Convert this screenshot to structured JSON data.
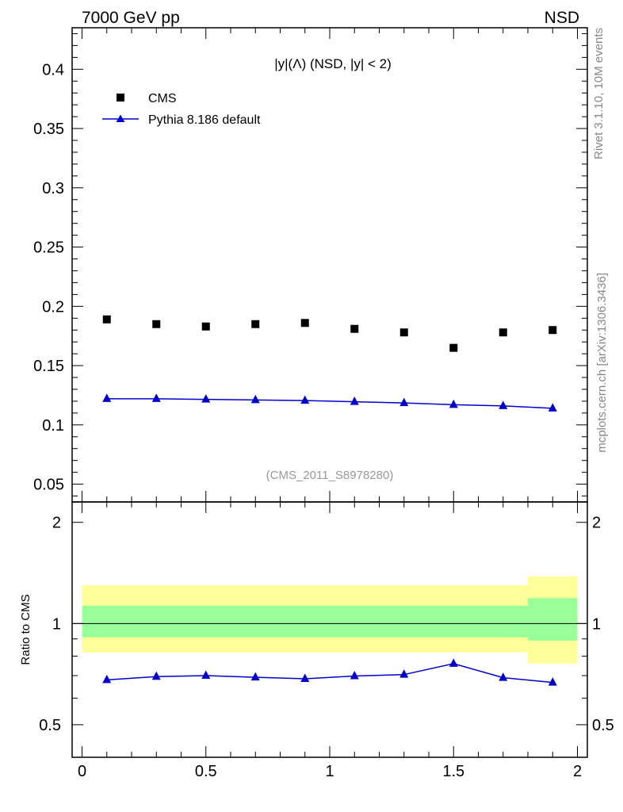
{
  "header": {
    "left": "7000 GeV pp",
    "right": "NSD"
  },
  "side_labels": {
    "rivet": "Rivet 3.1.10,  10M events",
    "mcplots": "mcplots.cern.ch [arXiv:1306.3436]"
  },
  "chart_data": [
    {
      "type": "scatter",
      "title": "|y|(Λ) (NSD, |y| < 2)",
      "watermark": "(CMS_2011_S8978280)",
      "xlim": [
        -0.04,
        2.04
      ],
      "ylim": [
        0.035,
        0.435
      ],
      "yticks": [
        0.05,
        0.1,
        0.15,
        0.2,
        0.25,
        0.3,
        0.35,
        0.4
      ],
      "ytick_labels": [
        "0.05",
        "0.1",
        "0.15",
        "0.2",
        "0.25",
        "0.3",
        "0.35",
        "0.4"
      ],
      "legend_position": "top-left",
      "x": [
        0.1,
        0.3,
        0.5,
        0.7,
        0.9,
        1.1,
        1.3,
        1.5,
        1.7,
        1.9
      ],
      "series": [
        {
          "name": "CMS",
          "marker": "square",
          "color": "#000000",
          "values": [
            0.189,
            0.185,
            0.183,
            0.185,
            0.186,
            0.181,
            0.178,
            0.165,
            0.178,
            0.18
          ]
        },
        {
          "name": "Pythia 8.186 default",
          "marker": "triangle",
          "color": "#0000cc",
          "values": [
            0.122,
            0.122,
            0.1215,
            0.121,
            0.1205,
            0.1195,
            0.1185,
            0.117,
            0.116,
            0.114
          ]
        }
      ]
    },
    {
      "type": "line",
      "ylabel": "Ratio to CMS",
      "xlim": [
        -0.04,
        2.04
      ],
      "ylim": [
        0.4,
        2.3
      ],
      "yticks": [
        0.5,
        1,
        2
      ],
      "ytick_labels": [
        "0.5",
        "1",
        "2"
      ],
      "xticks": [
        0,
        0.5,
        1,
        1.5,
        2
      ],
      "xtick_labels": [
        "0",
        "0.5",
        "1",
        "1.5",
        "2"
      ],
      "reference_line": 1,
      "bands": [
        {
          "x_range": [
            0,
            1.8
          ],
          "yellow": [
            0.82,
            1.3
          ],
          "green": [
            0.91,
            1.13
          ]
        },
        {
          "x_range": [
            1.8,
            2.0
          ],
          "yellow": [
            0.76,
            1.38
          ],
          "green": [
            0.89,
            1.19
          ]
        }
      ],
      "band_colors": {
        "yellow": "#ffff99",
        "green": "#99ff99"
      },
      "x": [
        0.1,
        0.3,
        0.5,
        0.7,
        0.9,
        1.1,
        1.3,
        1.5,
        1.7,
        1.9
      ],
      "series": [
        {
          "name": "Pythia 8.186 default",
          "color": "#0000cc",
          "values": [
            0.68,
            0.695,
            0.7,
            0.692,
            0.685,
            0.698,
            0.705,
            0.76,
            0.69,
            0.668
          ]
        }
      ]
    }
  ]
}
